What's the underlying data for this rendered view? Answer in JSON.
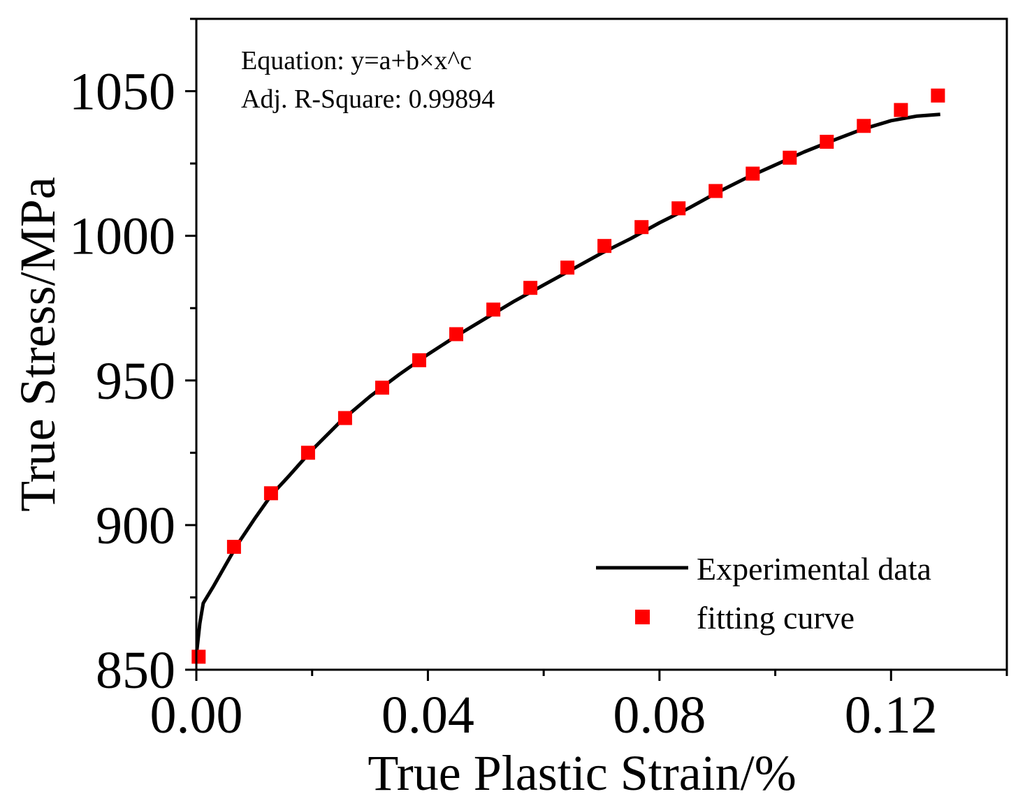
{
  "chart_data": {
    "type": "line+scatter",
    "title": "",
    "xlabel": "True Plastic Strain/%",
    "ylabel": "True Stress/MPa",
    "xlim": [
      0.0,
      0.14
    ],
    "ylim": [
      850,
      1075
    ],
    "x_ticks": [
      0.0,
      0.04,
      0.08,
      0.12
    ],
    "x_tick_labels": [
      "0.00",
      "0.04",
      "0.08",
      "0.12"
    ],
    "y_ticks": [
      850,
      900,
      950,
      1000,
      1050
    ],
    "y_tick_labels": [
      "850",
      "900",
      "950",
      "1000",
      "1050"
    ],
    "annotations": [
      "Equation: y=a+b×x^c",
      "Adj. R-Square: 0.99894"
    ],
    "legend_position": "bottom-right",
    "series": [
      {
        "name": "Experimental data",
        "kind": "line",
        "color": "#000000",
        "x": [
          0.0,
          0.0006,
          0.0012,
          0.003,
          0.005,
          0.007,
          0.01,
          0.013,
          0.016,
          0.02,
          0.025,
          0.03,
          0.035,
          0.04,
          0.045,
          0.05,
          0.055,
          0.06,
          0.065,
          0.07,
          0.075,
          0.08,
          0.085,
          0.09,
          0.095,
          0.1,
          0.105,
          0.11,
          0.115,
          0.12,
          0.1245,
          0.1285
        ],
        "y": [
          855,
          866,
          873,
          879,
          886,
          893,
          902,
          910.5,
          917,
          926,
          936,
          944.5,
          952,
          959,
          965.5,
          971.5,
          977.5,
          983,
          988.5,
          994,
          999,
          1004.5,
          1009.5,
          1015,
          1020,
          1024.5,
          1029,
          1033,
          1036.8,
          1039.8,
          1041.4,
          1042
        ]
      },
      {
        "name": "fitting curve",
        "kind": "scatter",
        "marker": "square",
        "color": "#ff0000",
        "x": [
          0.0004,
          0.0065,
          0.0129,
          0.0193,
          0.0257,
          0.0321,
          0.0385,
          0.0449,
          0.0513,
          0.0577,
          0.0641,
          0.0705,
          0.0769,
          0.0833,
          0.0897,
          0.0961,
          0.1025,
          0.1089,
          0.1153,
          0.1217,
          0.1281
        ],
        "y": [
          854.5,
          892.5,
          911,
          925,
          937,
          947.5,
          957,
          966,
          974.5,
          982,
          989,
          996.5,
          1003,
          1009.5,
          1015.5,
          1021.5,
          1027,
          1032.5,
          1038,
          1043.5,
          1048.5
        ]
      }
    ]
  }
}
